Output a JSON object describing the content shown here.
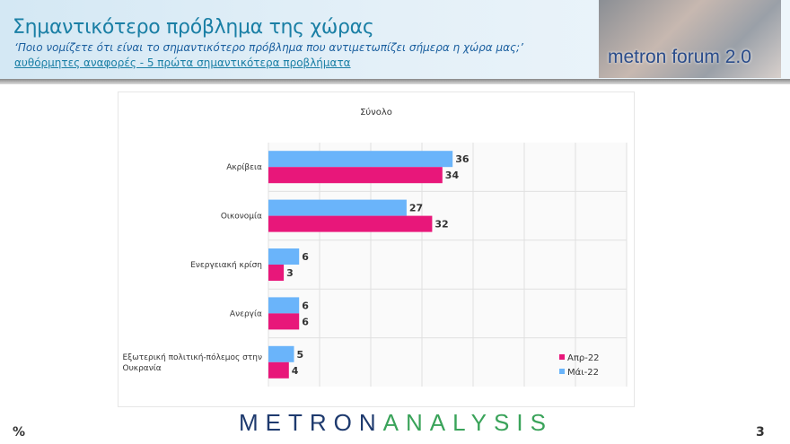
{
  "header": {
    "title": "Σημαντικότερο πρόβλημα της χώρας",
    "question": "‘Ποιο νομίζετε ότι  είναι το σημαντικότερο πρόβλημα που αντιμετωπίζει σήμερα η χώρα μας;’",
    "subtitle": "αυθόρμητες αναφορές - 5 πρώτα σημαντικότερα προβλήματα",
    "logo_text": "metron forum 2.0"
  },
  "footer": {
    "logo_a": "METRON",
    "logo_b": "ANALYSIS",
    "unit": "%",
    "page": "3"
  },
  "chart_data": {
    "type": "bar",
    "orientation": "horizontal",
    "title": "Σύνολο",
    "categories": [
      "Ακρίβεια",
      "Οικονομία",
      "Ενεργειακή κρίση",
      "Ανεργία",
      "Εξωτερική πολιτική-πόλεμος στην Ουκρανία"
    ],
    "series": [
      {
        "name": "Μάι-22",
        "color": "#6ab4fa",
        "values": [
          36,
          27,
          6,
          6,
          5
        ]
      },
      {
        "name": "Απρ-22",
        "color": "#e8177a",
        "values": [
          34,
          32,
          3,
          6,
          4
        ]
      }
    ],
    "legend_order": [
      "Απρ-22",
      "Μάι-22"
    ],
    "xlim": [
      0,
      70
    ],
    "grid": true,
    "legend": "bottom-right"
  }
}
